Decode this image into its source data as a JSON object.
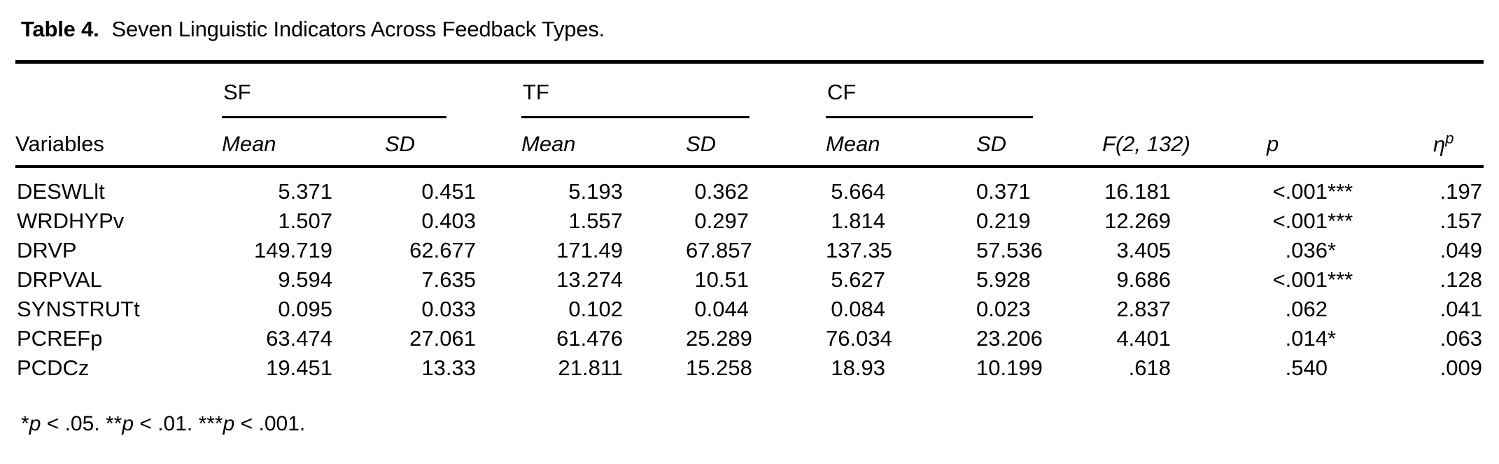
{
  "caption": {
    "label": "Table 4.",
    "text": "Seven Linguistic Indicators Across Feedback Types."
  },
  "table": {
    "row_header": "Variables",
    "groups": [
      {
        "label": "SF"
      },
      {
        "label": "TF"
      },
      {
        "label": "CF"
      }
    ],
    "subheaders": {
      "mean": "Mean",
      "sd": "SD"
    },
    "stat_headers": {
      "f": "F(2, 132)",
      "p": "p",
      "eta_base": "η",
      "eta_sup": "p"
    },
    "rows": [
      {
        "name": "DESWLlt",
        "sf_mean": "5.371",
        "sf_sd": "0.451",
        "tf_mean": "5.193",
        "tf_sd": "0.362",
        "cf_mean": "5.664",
        "cf_sd": "0.371",
        "f": "16.181",
        "p": "<.001",
        "p_stars": "***",
        "eta": ".197"
      },
      {
        "name": "WRDHYPv",
        "sf_mean": "1.507",
        "sf_sd": "0.403",
        "tf_mean": "1.557",
        "tf_sd": "0.297",
        "cf_mean": "1.814",
        "cf_sd": "0.219",
        "f": "12.269",
        "p": "<.001",
        "p_stars": "***",
        "eta": ".157"
      },
      {
        "name": "DRVP",
        "sf_mean": "149.719",
        "sf_sd": "62.677",
        "tf_mean": "171.49",
        "tf_sd": "67.857",
        "cf_mean": "137.35",
        "cf_sd": "57.536",
        "f": "3.405",
        "p": ".036",
        "p_stars": "*",
        "eta": ".049"
      },
      {
        "name": "DRPVAL",
        "sf_mean": "9.594",
        "sf_sd": "7.635",
        "tf_mean": "13.274",
        "tf_sd": "10.51",
        "cf_mean": "5.627",
        "cf_sd": "5.928",
        "f": "9.686",
        "p": "<.001",
        "p_stars": "***",
        "eta": ".128"
      },
      {
        "name": "SYNSTRUTt",
        "sf_mean": "0.095",
        "sf_sd": "0.033",
        "tf_mean": "0.102",
        "tf_sd": "0.044",
        "cf_mean": "0.084",
        "cf_sd": "0.023",
        "f": "2.837",
        "p": ".062",
        "p_stars": "",
        "eta": ".041"
      },
      {
        "name": "PCREFp",
        "sf_mean": "63.474",
        "sf_sd": "27.061",
        "tf_mean": "61.476",
        "tf_sd": "25.289",
        "cf_mean": "76.034",
        "cf_sd": "23.206",
        "f": "4.401",
        "p": ".014",
        "p_stars": "*",
        "eta": ".063"
      },
      {
        "name": "PCDCz",
        "sf_mean": "19.451",
        "sf_sd": "13.33",
        "tf_mean": "21.811",
        "tf_sd": "15.258",
        "cf_mean": "18.93",
        "cf_sd": "10.199",
        "f": ".618",
        "p": ".540",
        "p_stars": "",
        "eta": ".009"
      }
    ]
  },
  "footnote": {
    "s1": "*",
    "p1": "p",
    "r1": " < .05. ",
    "s2": "**",
    "p2": "p",
    "r2": " < .01. ",
    "s3": "***",
    "p3": "p",
    "r3": " < .001."
  }
}
